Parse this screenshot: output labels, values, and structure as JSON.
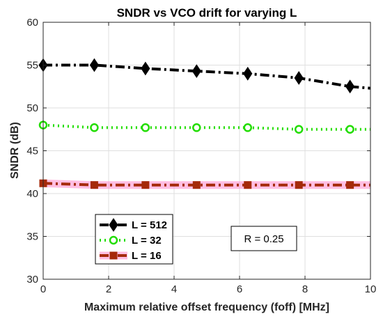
{
  "chart_data": {
    "type": "line",
    "title": "SNDR vs VCO drift for varying L",
    "xlabel": "Maximum relative offset frequency (foff) [MHz]",
    "ylabel": "SNDR (dB)",
    "xlim": [
      0,
      10
    ],
    "ylim": [
      30,
      60
    ],
    "xticks": [
      0,
      2,
      4,
      6,
      8,
      10
    ],
    "yticks": [
      30,
      35,
      40,
      45,
      50,
      55,
      60
    ],
    "grid": true,
    "legend_position": "bottom-left",
    "series": [
      {
        "name": "L = 512",
        "color": "#000000",
        "line_style": "dash-dot",
        "marker": "diamond",
        "x": [
          0,
          1.5625,
          3.125,
          4.6875,
          6.25,
          7.8125,
          9.375,
          10
        ],
        "y": [
          55.0,
          55.0,
          54.6,
          54.3,
          54.0,
          53.5,
          52.5,
          52.3
        ],
        "marker_indices": [
          0,
          1,
          2,
          3,
          4,
          5,
          6
        ]
      },
      {
        "name": "L = 32",
        "color": "#22dd00",
        "line_style": "dotted",
        "marker": "circle",
        "x": [
          0,
          1.5625,
          3.125,
          4.6875,
          6.25,
          7.8125,
          9.375,
          10
        ],
        "y": [
          48.0,
          47.7,
          47.7,
          47.7,
          47.7,
          47.5,
          47.5,
          47.5
        ],
        "marker_indices": [
          0,
          1,
          2,
          3,
          4,
          5,
          6
        ]
      },
      {
        "name": "L = 16",
        "color": "#a52a0a",
        "halo_color": "#ff88cc",
        "line_style": "dash-dot",
        "marker": "square",
        "x": [
          0,
          1.5625,
          3.125,
          4.6875,
          6.25,
          7.8125,
          9.375,
          10
        ],
        "y": [
          41.2,
          41.0,
          41.0,
          41.0,
          41.0,
          41.0,
          41.0,
          41.0
        ],
        "marker_indices": [
          0,
          1,
          2,
          3,
          4,
          5,
          6
        ]
      }
    ],
    "annotation": "R = 0.25"
  }
}
